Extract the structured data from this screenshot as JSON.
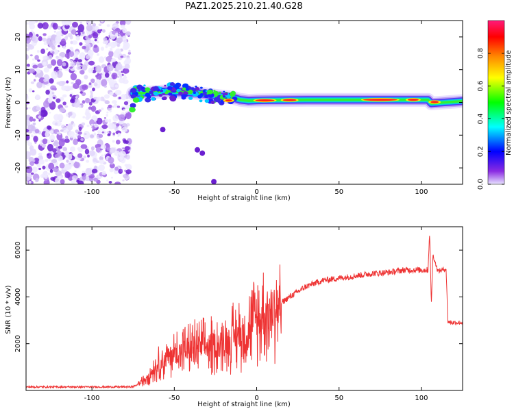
{
  "figure_title": "PAZ1.2025.210.21.40.G28",
  "chart_data": [
    {
      "type": "heatmap",
      "xlabel": "Height of straight line (km)",
      "ylabel": "Frequency (Hz)",
      "xlim": [
        -140,
        125
      ],
      "ylim": [
        -25,
        25
      ],
      "x_ticks": [
        -100,
        -50,
        0,
        50,
        100
      ],
      "y_ticks": [
        -20,
        -10,
        0,
        10,
        20
      ],
      "colorbar": {
        "label": "Normalized spectral amplitude",
        "range": [
          0,
          1
        ],
        "ticks": [
          "0.0",
          "0.2",
          "0.4",
          "0.6",
          "0.8"
        ],
        "colors": [
          "#e8e4ff",
          "#8a2be2",
          "#0000ff",
          "#00ffff",
          "#00ff00",
          "#ffff00",
          "#ff8800",
          "#ff0000",
          "#ff1a7a"
        ]
      },
      "features": {
        "noise_region_x": [
          -140,
          -77
        ],
        "trace_start_x": -77,
        "trace_center_freq": [
          [
            -75,
            2.8
          ],
          [
            -65,
            3.0
          ],
          [
            -55,
            3.4
          ],
          [
            -45,
            3.2
          ],
          [
            -35,
            2.8
          ],
          [
            -25,
            2.0
          ],
          [
            -15,
            1.5
          ],
          [
            -10,
            0.8
          ],
          [
            -5,
            0.5
          ],
          [
            0,
            0.6
          ],
          [
            10,
            0.7
          ],
          [
            30,
            0.8
          ],
          [
            50,
            0.8
          ],
          [
            70,
            0.8
          ],
          [
            90,
            0.8
          ],
          [
            104,
            0.8
          ],
          [
            106,
            -0.3
          ],
          [
            125,
            0.4
          ]
        ],
        "secondary_points": [
          [
            -57,
            -8.3
          ],
          [
            -36,
            -14.5
          ],
          [
            -33,
            -15.5
          ],
          [
            -26,
            -24.2
          ]
        ]
      }
    },
    {
      "type": "line",
      "xlabel": "Height of straight line (km)",
      "ylabel": "SNR (10 * v/v)",
      "xlim": [
        -140,
        125
      ],
      "ylim": [
        0,
        7000
      ],
      "x_ticks": [
        -100,
        -50,
        0,
        50,
        100
      ],
      "y_ticks": [
        2000,
        4000,
        6000
      ],
      "line_color": "#ee3333",
      "series": [
        {
          "x": [
            -140,
            -120,
            -100,
            -80,
            -75,
            -70,
            -60,
            -50,
            -40,
            -30,
            -20,
            -10,
            0,
            10,
            20,
            30,
            40,
            50,
            60,
            70,
            80,
            90,
            100,
            104,
            105,
            106,
            107,
            110,
            115,
            116,
            118,
            125
          ],
          "y": [
            150,
            150,
            150,
            150,
            160,
            350,
            1100,
            1600,
            1800,
            1900,
            2000,
            2400,
            3000,
            3500,
            4000,
            4450,
            4700,
            4800,
            4900,
            5000,
            5050,
            5150,
            5150,
            5150,
            6800,
            3700,
            5800,
            5100,
            5200,
            2950,
            2900,
            2900
          ]
        }
      ]
    }
  ]
}
